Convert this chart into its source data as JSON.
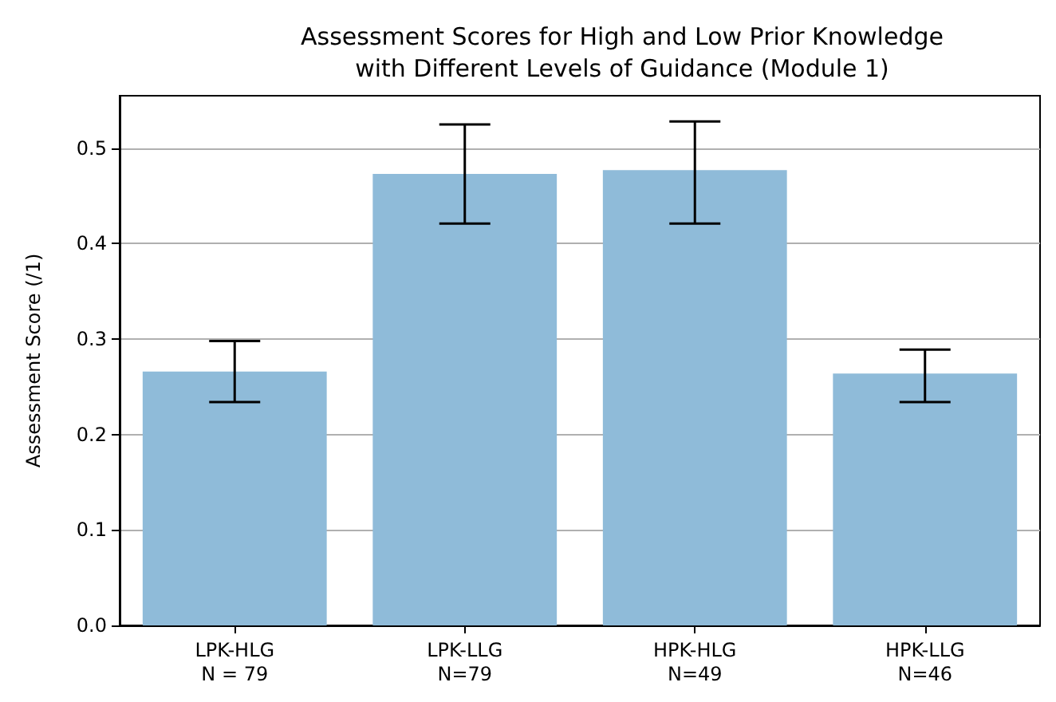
{
  "chart_data": {
    "type": "bar",
    "title": "Assessment Scores for High and Low Prior Knowledge\nwith Different Levels of Guidance (Module 1)",
    "ylabel": "Assessment Score (/1)",
    "categories": [
      "LPK-HLG\nN = 79",
      "LPK-LLG\nN=79",
      "HPK-HLG\nN=49",
      "HPK-LLG\nN=46"
    ],
    "values": [
      0.266,
      0.473,
      0.477,
      0.264
    ],
    "errors": [
      [
        0.234,
        0.298
      ],
      [
        0.421,
        0.525
      ],
      [
        0.421,
        0.528
      ],
      [
        0.234,
        0.289
      ]
    ],
    "color": "#8fbbd9",
    "ylim": [
      0,
      0.555
    ],
    "yticks": [
      {
        "value": 0,
        "label": "0.0"
      },
      {
        "value": 0.1,
        "label": "0.1"
      },
      {
        "value": 0.2,
        "label": "0.2"
      },
      {
        "value": 0.3,
        "label": "0.3"
      },
      {
        "value": 0.4,
        "label": "0.4"
      },
      {
        "value": 0.5,
        "label": "0.5"
      }
    ],
    "grid": "y"
  }
}
